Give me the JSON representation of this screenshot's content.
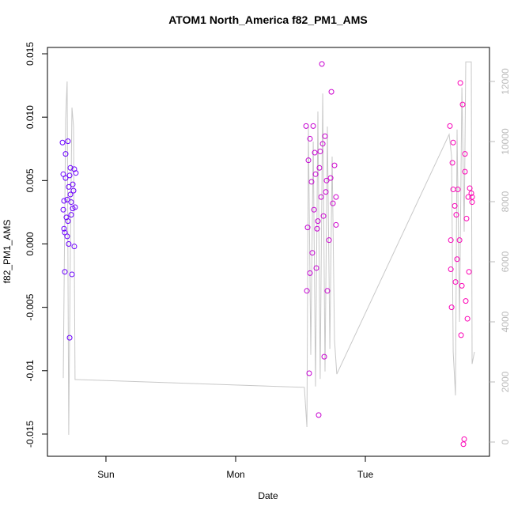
{
  "chart_data": {
    "type": "scatter",
    "title": "ATOM1 North_America f82_PM1_AMS",
    "x_label": "Date",
    "y_label": "f82_PM1_AMS",
    "xlim": [
      -0.451,
      2.957
    ],
    "xticks": [
      {
        "value": 0,
        "label": "Sun"
      },
      {
        "value": 1,
        "label": "Mon"
      },
      {
        "value": 2,
        "label": "Tue"
      }
    ],
    "ylim": [
      -0.01675,
      0.0155
    ],
    "yticks": [
      -0.015,
      -0.01,
      -0.005,
      {
        "value": 0,
        "label": "0.000"
      },
      0.005,
      {
        "value": 0.01,
        "label": "0.010"
      },
      0.015
    ],
    "y2lim": [
      -474,
      13132
    ],
    "y2ticks": [
      0,
      2000,
      4000,
      6000,
      8000,
      10000,
      12000
    ],
    "color_range": [
      "#6a00ff",
      "#ff00b4"
    ],
    "points": {
      "x": [
        -0.335,
        -0.329,
        -0.323,
        -0.329,
        -0.323,
        -0.317,
        -0.311,
        -0.305,
        -0.299,
        -0.293,
        -0.287,
        -0.28,
        -0.28,
        -0.274,
        -0.268,
        -0.262,
        -0.256,
        -0.25,
        -0.244,
        -0.238,
        -0.232,
        -0.244,
        -0.311,
        -0.293,
        -0.274,
        -0.299,
        -0.287,
        -0.256,
        -0.268,
        -0.317,
        1.543,
        1.549,
        1.555,
        1.561,
        1.567,
        1.573,
        1.585,
        1.591,
        1.604,
        1.61,
        1.622,
        1.628,
        1.64,
        1.646,
        1.659,
        1.665,
        1.677,
        1.683,
        1.689,
        1.701,
        1.707,
        1.72,
        1.732,
        1.738,
        1.75,
        1.762,
        1.774,
        1.774,
        1.598,
        1.634,
        1.652,
        1.695,
        1.573,
        1.616,
        1.671,
        2.652,
        2.659,
        2.665,
        2.671,
        2.677,
        2.689,
        2.695,
        2.707,
        2.713,
        2.726,
        2.732,
        2.738,
        2.75,
        2.756,
        2.762,
        2.768,
        2.774,
        2.78,
        2.787,
        2.793,
        2.805,
        2.817,
        2.823,
        2.823,
        2.677,
        2.701,
        2.744,
        2.768,
        2.799,
        2.659
      ],
      "values": [
        0.008,
        0.0055,
        0.0034,
        0.0027,
        0.0012,
        -0.0022,
        0.0071,
        0.0021,
        0.0006,
        0.0081,
        0.0045,
        0.0054,
        -0.0074,
        0.0039,
        0.0023,
        -0.0024,
        0.0028,
        0.0042,
        0.0059,
        0.0029,
        0.0056,
        -0.0002,
        0.0052,
        0.0018,
        0.006,
        0.0035,
        0.0,
        0.0047,
        0.0033,
        0.0009,
        0.0093,
        -0.0037,
        0.0013,
        0.0066,
        -0.0102,
        0.0083,
        0.0049,
        -0.0007,
        0.0027,
        0.0072,
        -0.0019,
        0.0012,
        -0.0135,
        0.006,
        0.0037,
        0.0142,
        0.0022,
        -0.0089,
        0.0085,
        0.005,
        -0.0037,
        0.0003,
        0.0052,
        0.012,
        0.0032,
        0.0062,
        0.0037,
        0.0015,
        0.0093,
        0.0018,
        0.0073,
        0.0041,
        -0.0023,
        0.0055,
        0.0079,
        0.0093,
        -0.002,
        -0.005,
        0.0064,
        0.008,
        0.003,
        -0.003,
        -0.0012,
        0.0043,
        0.0003,
        0.0127,
        -0.0072,
        0.011,
        -0.0158,
        -0.0154,
        0.0071,
        -0.0045,
        0.002,
        -0.0059,
        0.0037,
        0.0044,
        0.004,
        0.0037,
        0.0033,
        0.0043,
        0.0023,
        -0.0033,
        0.0057,
        -0.0022,
        0.0003
      ]
    },
    "line": {
      "axis": "y2",
      "color": "#c8c8c8",
      "x": [
        -0.329,
        -0.311,
        -0.299,
        -0.287,
        -0.274,
        -0.262,
        -0.25,
        -0.238,
        -0.226,
        1.53,
        1.549,
        1.561,
        1.579,
        1.598,
        1.616,
        1.634,
        1.652,
        1.671,
        1.689,
        1.707,
        1.726,
        1.744,
        1.762,
        1.78,
        2.646,
        2.665,
        2.677,
        2.695,
        2.707,
        2.726,
        2.744,
        2.762,
        2.774,
        2.817,
        2.823,
        2.841
      ],
      "values": [
        2130,
        10760,
        12000,
        240,
        6500,
        11130,
        10500,
        2080,
        2080,
        1820,
        500,
        10500,
        2900,
        10000,
        1850,
        11000,
        2100,
        11600,
        2350,
        10500,
        3100,
        9500,
        3400,
        2260,
        10240,
        9500,
        3000,
        1550,
        10400,
        4000,
        11800,
        7000,
        12650,
        12650,
        2600,
        3000
      ]
    }
  }
}
